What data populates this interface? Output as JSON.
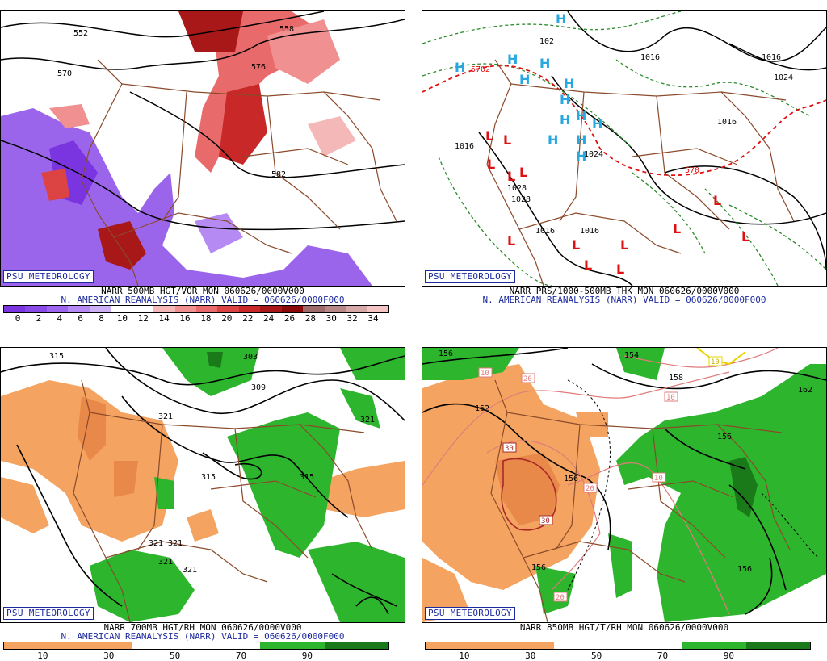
{
  "badge": "PSU METEOROLOGY",
  "panels": {
    "p1": {
      "line1": "NARR 500MB HGT/VOR MON 060626/0000V000",
      "line2": "N. AMERICAN REANALYSIS (NARR) VALID = 060626/0000F000",
      "labels": [
        "552",
        "558",
        "570",
        "576",
        "582"
      ],
      "ticks": [
        "0",
        "2",
        "4",
        "6",
        "8",
        "10",
        "12",
        "14",
        "16",
        "18",
        "20",
        "22",
        "24",
        "26",
        "28",
        "30",
        "32",
        "34"
      ],
      "colors": [
        "#7a35e0",
        "#8a4ae8",
        "#9e66ee",
        "#b58af2",
        "#cbb0f6",
        "#fff",
        "#fff",
        "#f5b8b8",
        "#f09090",
        "#e86a6a",
        "#dc4444",
        "#c82828",
        "#a81818",
        "#8a0a0a",
        "#9e6a6a",
        "#b88888",
        "#d6a8a8",
        "#f4c4c4"
      ]
    },
    "p2": {
      "line1": "NARR PRS/1000-500MB THK MON 060626/0000V000",
      "line2": "N. AMERICAN REANALYSIS (NARR) VALID = 060626/0000F000",
      "labels": [
        "1016",
        "1016",
        "1024",
        "1016",
        "1016",
        "1016",
        "1016",
        "1024",
        "102",
        "5702",
        "570",
        "1028",
        "1028"
      ],
      "markers": [
        "H",
        "L"
      ]
    },
    "p3": {
      "line1": "NARR 700MB HGT/RH MON 060626/0000V000",
      "line2": "N. AMERICAN REANALYSIS (NARR) VALID = 060626/0000F000",
      "labels": [
        "315",
        "303",
        "309",
        "321",
        "321",
        "315",
        "315",
        "321",
        "321",
        "321",
        "321"
      ],
      "ticks": [
        "10",
        "30",
        "50",
        "70",
        "90"
      ]
    },
    "p4": {
      "line1": "NARR 850MB HGT/T/RH MON 060626/0000V000",
      "labels": [
        "156",
        "154",
        "158",
        "162",
        "162",
        "156",
        "156",
        "156"
      ],
      "temps": [
        "10",
        "20",
        "10",
        "30",
        "20",
        "30",
        "20",
        "10",
        "10"
      ],
      "ticks": [
        "10",
        "30",
        "50",
        "70",
        "90"
      ]
    }
  },
  "colors": {
    "dry": "#f4a460",
    "moist": "#2db52d",
    "moist_dark": "#1a7a1a",
    "border": "#8b4a2b",
    "high": "#29a8e0",
    "low": "#e01010",
    "thick": "#e01010",
    "isobar": "#2a8a2a",
    "badge": "#1d2a9e"
  }
}
